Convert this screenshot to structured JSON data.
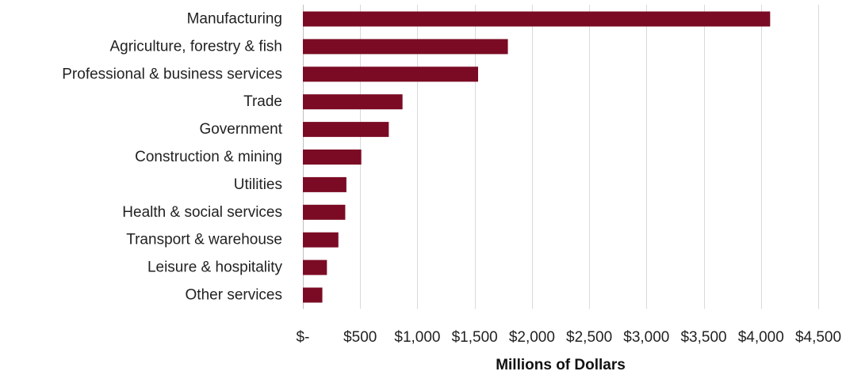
{
  "chart_data": {
    "type": "bar",
    "orientation": "horizontal",
    "categories": [
      "Manufacturing",
      "Agriculture, forestry & fish",
      "Professional & business services",
      "Trade",
      "Government",
      "Construction & mining",
      "Utilities",
      "Health & social services",
      "Transport & warehouse",
      "Leisure & hospitality",
      "Other services"
    ],
    "values": [
      4080,
      1790,
      1530,
      870,
      750,
      510,
      380,
      370,
      310,
      210,
      170
    ],
    "xlabel": "Millions of Dollars",
    "ylabel": "",
    "xlim": [
      0,
      4500
    ],
    "xticks": [
      0,
      500,
      1000,
      1500,
      2000,
      2500,
      3000,
      3500,
      4000,
      4500
    ],
    "xtick_labels": [
      "$-",
      "$500",
      "$1,000",
      "$1,500",
      "$2,000",
      "$2,500",
      "$3,000",
      "$3,500",
      "$4,000",
      "$4,500"
    ],
    "grid": "vertical",
    "legend": "none",
    "bar_color": "#7b0b24"
  }
}
